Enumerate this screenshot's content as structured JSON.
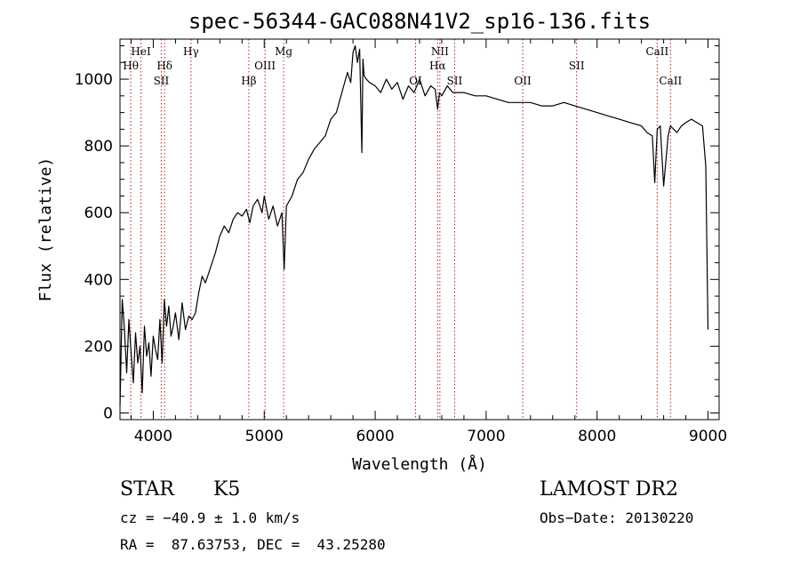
{
  "chart_data": {
    "type": "line",
    "title": "spec-56344-GAC088N41V2_sp16-136.fits",
    "xlabel": "Wavelength (Å)",
    "ylabel": "Flux (relative)",
    "xlim": [
      3700,
      9100
    ],
    "ylim": [
      -20,
      1120
    ],
    "xticks": [
      4000,
      5000,
      6000,
      7000,
      8000,
      9000
    ],
    "yticks": [
      0,
      200,
      400,
      600,
      800,
      1000
    ],
    "grid": false,
    "line_color": "#000000",
    "marker_color": "#b22222",
    "series": [
      {
        "x": [
          3700,
          3720,
          3740,
          3760,
          3780,
          3800,
          3820,
          3840,
          3860,
          3880,
          3900,
          3920,
          3940,
          3960,
          3980,
          4000,
          4020,
          4040,
          4060,
          4080,
          4100,
          4120,
          4140,
          4160,
          4180,
          4200,
          4230,
          4260,
          4290,
          4320,
          4350,
          4380,
          4410,
          4440,
          4470,
          4500,
          4530,
          4560,
          4600,
          4640,
          4680,
          4720,
          4760,
          4800,
          4840,
          4870,
          4900,
          4940,
          4980,
          5000,
          5040,
          5080,
          5120,
          5160,
          5180,
          5200,
          5250,
          5300,
          5350,
          5400,
          5450,
          5500,
          5550,
          5600,
          5650,
          5700,
          5750,
          5780,
          5800,
          5820,
          5840,
          5860,
          5880,
          5890,
          5900,
          5920,
          5950,
          6000,
          6050,
          6100,
          6150,
          6200,
          6250,
          6300,
          6350,
          6400,
          6450,
          6500,
          6540,
          6563,
          6580,
          6600,
          6650,
          6700,
          6750,
          6800,
          6900,
          7000,
          7100,
          7200,
          7300,
          7400,
          7500,
          7600,
          7700,
          7800,
          7900,
          8000,
          8100,
          8200,
          8300,
          8400,
          8450,
          8498,
          8520,
          8542,
          8570,
          8600,
          8640,
          8662,
          8690,
          8720,
          8760,
          8800,
          8850,
          8900,
          8950,
          8980,
          9000
        ],
        "y": [
          20,
          340,
          250,
          120,
          280,
          180,
          90,
          240,
          150,
          200,
          60,
          260,
          170,
          210,
          110,
          230,
          190,
          160,
          280,
          150,
          340,
          260,
          320,
          230,
          260,
          300,
          220,
          330,
          250,
          290,
          280,
          300,
          360,
          410,
          390,
          420,
          450,
          480,
          530,
          560,
          540,
          580,
          600,
          590,
          610,
          570,
          620,
          640,
          600,
          650,
          580,
          620,
          560,
          600,
          430,
          620,
          650,
          700,
          720,
          760,
          790,
          810,
          830,
          880,
          900,
          960,
          1020,
          990,
          1080,
          1100,
          1050,
          1090,
          780,
          1060,
          1010,
          1000,
          990,
          980,
          960,
          1000,
          970,
          990,
          940,
          980,
          960,
          1000,
          950,
          980,
          970,
          910,
          960,
          950,
          980,
          960,
          960,
          960,
          950,
          950,
          940,
          930,
          930,
          930,
          920,
          920,
          930,
          920,
          910,
          900,
          890,
          880,
          870,
          860,
          840,
          830,
          690,
          850,
          860,
          680,
          830,
          860,
          850,
          840,
          860,
          870,
          880,
          870,
          860,
          740,
          250
        ]
      }
    ],
    "line_markers": [
      {
        "label": "Hθ",
        "x": 3797,
        "row": 2
      },
      {
        "label": "HeI",
        "x": 3889,
        "row": 1
      },
      {
        "label": "Hδ",
        "x": 4102,
        "row": 2
      },
      {
        "label": "SII",
        "x": 4072,
        "row": 3
      },
      {
        "label": "Hγ",
        "x": 4340,
        "row": 1
      },
      {
        "label": "Hβ",
        "x": 4861,
        "row": 3
      },
      {
        "label": "OIII",
        "x": 5007,
        "row": 2
      },
      {
        "label": "Mg",
        "x": 5175,
        "row": 1
      },
      {
        "label": "OI",
        "x": 6364,
        "row": 3
      },
      {
        "label": "NII",
        "x": 6583,
        "row": 1
      },
      {
        "label": "Hα",
        "x": 6563,
        "row": 2
      },
      {
        "label": "SII",
        "x": 6716,
        "row": 3
      },
      {
        "label": "OII",
        "x": 7330,
        "row": 3
      },
      {
        "label": "SII",
        "x": 7816,
        "row": 2
      },
      {
        "label": "CaII",
        "x": 8542,
        "row": 1
      },
      {
        "label": "CaII",
        "x": 8662,
        "row": 3
      }
    ]
  },
  "info": {
    "class_label": "STAR",
    "subclass_label": "K5",
    "survey": "LAMOST DR2",
    "cz": "cz = −40.9 ± 1.0 km/s",
    "obs_date": "Obs−Date: 20130220",
    "coords": "RA =  87.63753, DEC =  43.25280"
  }
}
